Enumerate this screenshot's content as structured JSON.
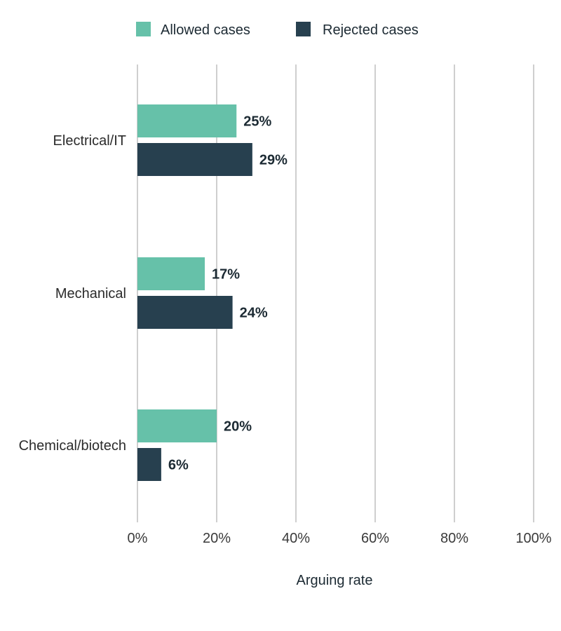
{
  "chart_data": {
    "type": "bar",
    "orientation": "horizontal",
    "categories": [
      "Electrical/IT",
      "Mechanical",
      "Chemical/biotech"
    ],
    "series": [
      {
        "name": "Allowed cases",
        "values": [
          25,
          17,
          20
        ],
        "color": "#66c1a9"
      },
      {
        "name": "Rejected cases",
        "values": [
          29,
          24,
          6
        ],
        "color": "#27404f"
      }
    ],
    "value_labels": [
      [
        "25%",
        "17%",
        "20%"
      ],
      [
        "29%",
        "24%",
        "6%"
      ]
    ],
    "xlabel": "Arguing rate",
    "xlim": [
      0,
      100
    ],
    "x_ticks": [
      "0%",
      "20%",
      "40%",
      "60%",
      "80%",
      "100%"
    ],
    "grid": "vertical",
    "legend_position": "top"
  }
}
